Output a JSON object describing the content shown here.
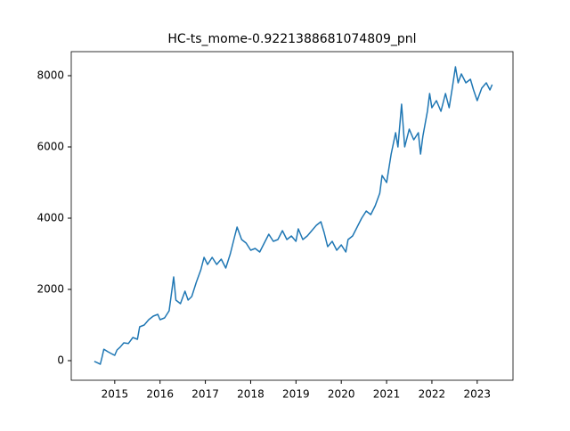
{
  "chart_data": {
    "type": "line",
    "title": "HC-ts_mome-0.9221388681074809_pnl",
    "x": [
      2014.55,
      2014.62,
      2014.68,
      2014.72,
      2014.76,
      2014.85,
      2014.92,
      2015.0,
      2015.05,
      2015.12,
      2015.2,
      2015.3,
      2015.4,
      2015.5,
      2015.55,
      2015.65,
      2015.75,
      2015.85,
      2015.95,
      2016.0,
      2016.1,
      2016.2,
      2016.27,
      2016.3,
      2016.35,
      2016.45,
      2016.55,
      2016.62,
      2016.7,
      2016.8,
      2016.9,
      2016.97,
      2017.05,
      2017.15,
      2017.25,
      2017.35,
      2017.45,
      2017.55,
      2017.65,
      2017.7,
      2017.8,
      2017.9,
      2018.0,
      2018.1,
      2018.2,
      2018.3,
      2018.4,
      2018.5,
      2018.6,
      2018.7,
      2018.8,
      2018.9,
      2019.0,
      2019.05,
      2019.15,
      2019.25,
      2019.35,
      2019.45,
      2019.55,
      2019.62,
      2019.7,
      2019.8,
      2019.9,
      2020.0,
      2020.1,
      2020.15,
      2020.25,
      2020.35,
      2020.45,
      2020.55,
      2020.65,
      2020.75,
      2020.85,
      2020.9,
      2021.0,
      2021.1,
      2021.2,
      2021.25,
      2021.33,
      2021.4,
      2021.5,
      2021.6,
      2021.7,
      2021.75,
      2021.8,
      2021.9,
      2021.95,
      2022.0,
      2022.1,
      2022.2,
      2022.3,
      2022.38,
      2022.45,
      2022.52,
      2022.58,
      2022.65,
      2022.75,
      2022.85,
      2022.92,
      2023.0,
      2023.1,
      2023.2,
      2023.28,
      2023.33
    ],
    "series": [
      {
        "color": "#1f77b4",
        "values": [
          -20,
          -60,
          -100,
          100,
          320,
          250,
          200,
          150,
          300,
          380,
          500,
          480,
          650,
          600,
          950,
          1000,
          1150,
          1250,
          1300,
          1150,
          1200,
          1400,
          2050,
          2350,
          1700,
          1600,
          1950,
          1700,
          1800,
          2200,
          2550,
          2900,
          2700,
          2900,
          2700,
          2850,
          2600,
          3000,
          3500,
          3750,
          3400,
          3300,
          3100,
          3150,
          3050,
          3300,
          3550,
          3350,
          3400,
          3650,
          3400,
          3500,
          3350,
          3700,
          3400,
          3500,
          3650,
          3800,
          3900,
          3600,
          3200,
          3350,
          3100,
          3250,
          3050,
          3400,
          3500,
          3750,
          4000,
          4200,
          4100,
          4350,
          4700,
          5200,
          5000,
          5800,
          6400,
          6000,
          7200,
          6000,
          6500,
          6200,
          6400,
          5800,
          6300,
          7000,
          7500,
          7100,
          7300,
          7000,
          7500,
          7100,
          7650,
          8250,
          7800,
          8050,
          7800,
          7900,
          7600,
          7300,
          7650,
          7800,
          7600,
          7750
        ]
      }
    ],
    "xlim": [
      2014.04,
      2023.79
    ],
    "xticks": [
      2015,
      2016,
      2017,
      2018,
      2019,
      2020,
      2021,
      2022,
      2023
    ],
    "ylim": [
      -550,
      8675
    ],
    "yticks": [
      0,
      2000,
      4000,
      6000,
      8000
    ],
    "grid": false
  }
}
